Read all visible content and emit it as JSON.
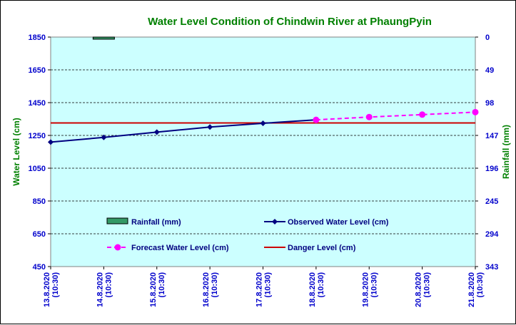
{
  "chart_data": {
    "type": "line",
    "title": "Water Level Condition of Chindwin River at  PhaungPyin",
    "ylabel": "Water Level (cm)",
    "y2label": "Rainfall (mm)",
    "categories": [
      "13.8.2020 (10:30)",
      "14.8.2020 (10:30)",
      "15.8.2020 (10:30)",
      "16.8.2020 (10:30)",
      "17.8.2020 (10:30)",
      "18.8.2020 (10:30)",
      "19.8.2020 (10:30)",
      "20.8.2020 (10:30)",
      "21.8.2020 (10:30)"
    ],
    "ylim": [
      450,
      1850
    ],
    "yticks": [
      450,
      650,
      850,
      1050,
      1250,
      1450,
      1650,
      1850
    ],
    "y2lim": [
      343,
      0
    ],
    "y2ticks": [
      0,
      49,
      98,
      147,
      196,
      245,
      294,
      343
    ],
    "grid": true,
    "series": [
      {
        "name": "Rainfall (mm)",
        "kind": "bar",
        "axis": "y2",
        "color": "#339966",
        "values": [
          null,
          1,
          null,
          null,
          null,
          null,
          null,
          null,
          null
        ]
      },
      {
        "name": "Observed Water Level (cm)",
        "kind": "line",
        "axis": "y",
        "color": "#000080",
        "values": [
          1209,
          1238,
          1270,
          1301,
          1324,
          1345,
          null,
          null,
          null
        ]
      },
      {
        "name": "Forecast Water Level (cm)",
        "kind": "line-dashed",
        "axis": "y",
        "color": "#ff00ff",
        "values": [
          null,
          null,
          null,
          null,
          null,
          1345,
          1362,
          1377,
          1392
        ]
      },
      {
        "name": "Danger Level (cm)",
        "kind": "hline",
        "axis": "y",
        "color": "#cc0000",
        "value": 1326
      }
    ],
    "colors": {
      "plot_background": "#ccffff",
      "title": "#008000",
      "tick_labels": "#0000cc",
      "axis_titles": "#008000"
    }
  }
}
